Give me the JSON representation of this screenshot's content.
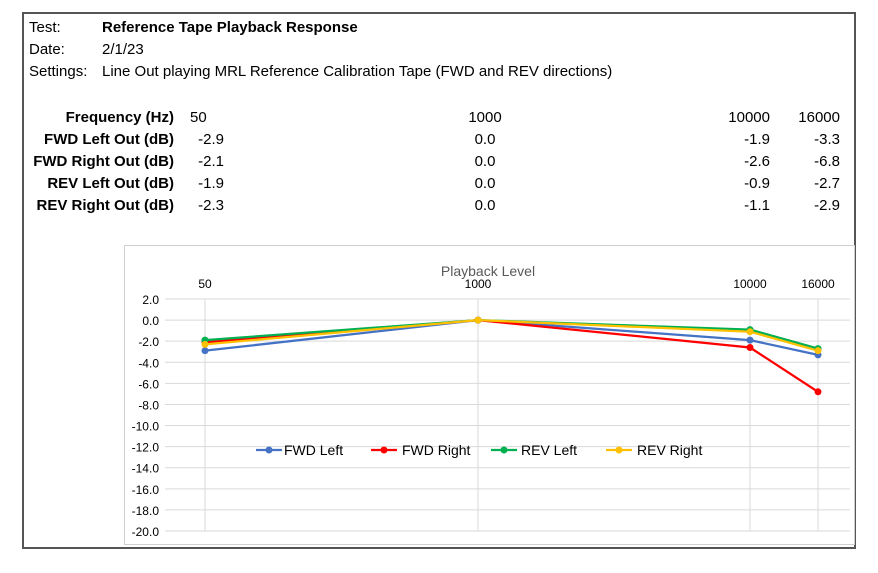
{
  "header": {
    "test_label": "Test:",
    "test_value": "Reference Tape Playback Response",
    "date_label": "Date:",
    "date_value": "2/1/23",
    "settings_label": "Settings:",
    "settings_value": "Line Out playing MRL Reference Calibration Tape (FWD and REV directions)"
  },
  "table": {
    "rows": [
      {
        "label": "Frequency (Hz)",
        "values": [
          "50",
          "1000",
          "10000",
          "16000"
        ]
      },
      {
        "label": "FWD Left Out (dB)",
        "values": [
          "-2.9",
          "0.0",
          "-1.9",
          "-3.3"
        ]
      },
      {
        "label": "FWD Right Out (dB)",
        "values": [
          "-2.1",
          "0.0",
          "-2.6",
          "-6.8"
        ]
      },
      {
        "label": "REV Left Out (dB)",
        "values": [
          "-1.9",
          "0.0",
          "-0.9",
          "-2.7"
        ]
      },
      {
        "label": "REV Right Out (dB)",
        "values": [
          "-2.3",
          "0.0",
          "-1.1",
          "-2.9"
        ]
      }
    ]
  },
  "chart_data": {
    "type": "line",
    "title": "Playback  Level",
    "categories": [
      "50",
      "1000",
      "10000",
      "16000"
    ],
    "x": [
      50,
      1000,
      10000,
      16000
    ],
    "ylim": [
      -20,
      2
    ],
    "y_ticks": [
      "2.0",
      "0.0",
      "-2.0",
      "-4.0",
      "-6.0",
      "-8.0",
      "-10.0",
      "-12.0",
      "-14.0",
      "-16.0",
      "-18.0",
      "-20.0"
    ],
    "x_axis_position": "top",
    "grid": true,
    "legend_position": "middle",
    "series": [
      {
        "name": "FWD Left",
        "color": "#4472C4",
        "values": [
          -2.9,
          0.0,
          -1.9,
          -3.3
        ]
      },
      {
        "name": "FWD Right",
        "color": "#FF0000",
        "values": [
          -2.1,
          0.0,
          -2.6,
          -6.8
        ]
      },
      {
        "name": "REV Left",
        "color": "#00B050",
        "values": [
          -1.9,
          0.0,
          -0.9,
          -2.7
        ]
      },
      {
        "name": "REV Right",
        "color": "#FFC000",
        "values": [
          -2.3,
          0.0,
          -1.1,
          -2.9
        ]
      }
    ]
  }
}
